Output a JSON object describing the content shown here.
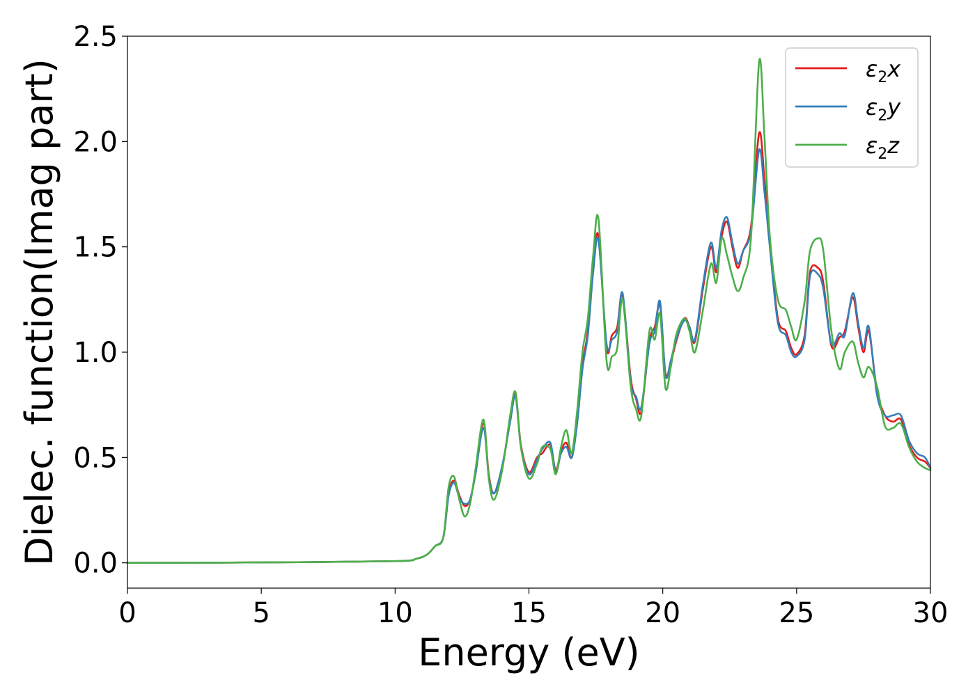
{
  "chart_data": {
    "type": "line",
    "xlabel": "Energy (eV)",
    "ylabel": "Dielec. function(Imag part)",
    "xlim": [
      0,
      30
    ],
    "ylim": [
      -0.12,
      2.5
    ],
    "xticks": [
      "0",
      "5",
      "10",
      "15",
      "20",
      "25",
      "30"
    ],
    "yticks": [
      "0.0",
      "0.5",
      "1.0",
      "1.5",
      "2.0",
      "2.5"
    ],
    "grid": false,
    "legend_position": "top-right",
    "series": [
      {
        "name": "ε₂x",
        "legend_base": "ε",
        "legend_sub": "2",
        "legend_tail": "x",
        "color": "#e41a1c",
        "x": [
          0,
          5,
          10,
          10.8,
          11.2,
          11.5,
          11.8,
          12.0,
          12.2,
          12.4,
          12.6,
          12.8,
          13.0,
          13.3,
          13.5,
          13.7,
          14.0,
          14.3,
          14.5,
          14.7,
          15.0,
          15.3,
          15.5,
          15.8,
          16.0,
          16.2,
          16.4,
          16.6,
          16.8,
          17.0,
          17.2,
          17.4,
          17.6,
          17.9,
          18.1,
          18.3,
          18.5,
          18.8,
          19.0,
          19.2,
          19.5,
          19.7,
          19.9,
          20.1,
          20.3,
          20.5,
          20.8,
          21.0,
          21.2,
          21.5,
          21.8,
          22.0,
          22.2,
          22.4,
          22.6,
          22.8,
          23.0,
          23.3,
          23.6,
          23.8,
          24.0,
          24.3,
          24.6,
          24.8,
          25.0,
          25.3,
          25.5,
          25.8,
          26.0,
          26.3,
          26.6,
          26.8,
          27.1,
          27.3,
          27.5,
          27.7,
          28.0,
          28.3,
          28.6,
          28.9,
          29.2,
          29.5,
          29.8,
          30.0
        ],
        "y": [
          0.0,
          0.002,
          0.008,
          0.02,
          0.04,
          0.08,
          0.12,
          0.33,
          0.39,
          0.32,
          0.27,
          0.3,
          0.42,
          0.66,
          0.42,
          0.33,
          0.45,
          0.68,
          0.8,
          0.56,
          0.43,
          0.5,
          0.52,
          0.56,
          0.44,
          0.53,
          0.57,
          0.5,
          0.68,
          0.94,
          1.1,
          1.4,
          1.55,
          1.02,
          1.08,
          1.12,
          1.27,
          0.88,
          0.78,
          0.72,
          1.05,
          1.12,
          1.22,
          0.9,
          0.95,
          1.05,
          1.16,
          1.12,
          1.05,
          1.3,
          1.5,
          1.38,
          1.55,
          1.62,
          1.5,
          1.4,
          1.48,
          1.6,
          2.04,
          1.82,
          1.52,
          1.16,
          1.1,
          1.02,
          0.99,
          1.08,
          1.38,
          1.4,
          1.33,
          1.03,
          1.07,
          1.1,
          1.26,
          1.12,
          1.0,
          1.1,
          0.82,
          0.7,
          0.67,
          0.68,
          0.56,
          0.5,
          0.48,
          0.45
        ]
      },
      {
        "name": "ε₂y",
        "legend_base": "ε",
        "legend_sub": "2",
        "legend_tail": "y",
        "color": "#377eb8",
        "x": [
          0,
          5,
          10,
          10.8,
          11.2,
          11.5,
          11.8,
          12.0,
          12.2,
          12.4,
          12.6,
          12.8,
          13.0,
          13.3,
          13.5,
          13.7,
          14.0,
          14.3,
          14.5,
          14.7,
          15.0,
          15.3,
          15.5,
          15.8,
          16.0,
          16.2,
          16.4,
          16.6,
          16.8,
          17.0,
          17.2,
          17.4,
          17.6,
          17.9,
          18.1,
          18.3,
          18.5,
          18.8,
          19.0,
          19.2,
          19.5,
          19.7,
          19.9,
          20.1,
          20.3,
          20.5,
          20.8,
          21.0,
          21.2,
          21.5,
          21.8,
          22.0,
          22.2,
          22.4,
          22.6,
          22.8,
          23.0,
          23.3,
          23.6,
          23.8,
          24.0,
          24.3,
          24.6,
          24.8,
          25.0,
          25.3,
          25.5,
          25.8,
          26.0,
          26.3,
          26.6,
          26.8,
          27.1,
          27.3,
          27.5,
          27.7,
          28.0,
          28.3,
          28.6,
          28.9,
          29.2,
          29.5,
          29.8,
          30.0
        ],
        "y": [
          0.0,
          0.002,
          0.008,
          0.02,
          0.04,
          0.08,
          0.12,
          0.32,
          0.38,
          0.31,
          0.28,
          0.3,
          0.42,
          0.64,
          0.41,
          0.33,
          0.46,
          0.67,
          0.79,
          0.55,
          0.42,
          0.49,
          0.54,
          0.57,
          0.43,
          0.52,
          0.55,
          0.5,
          0.66,
          0.92,
          1.08,
          1.38,
          1.53,
          1.04,
          1.06,
          1.1,
          1.28,
          0.86,
          0.79,
          0.74,
          1.04,
          1.1,
          1.24,
          0.89,
          0.96,
          1.06,
          1.15,
          1.12,
          1.06,
          1.32,
          1.52,
          1.4,
          1.58,
          1.64,
          1.52,
          1.42,
          1.48,
          1.58,
          1.96,
          1.76,
          1.5,
          1.14,
          1.08,
          1.0,
          0.98,
          1.06,
          1.36,
          1.37,
          1.3,
          1.04,
          1.09,
          1.08,
          1.28,
          1.14,
          1.02,
          1.12,
          0.8,
          0.7,
          0.7,
          0.7,
          0.58,
          0.52,
          0.5,
          0.45
        ]
      },
      {
        "name": "ε₂z",
        "legend_base": "ε",
        "legend_sub": "2",
        "legend_tail": "z",
        "color": "#4daf4a",
        "x": [
          0,
          5,
          10,
          10.8,
          11.2,
          11.5,
          11.8,
          12.0,
          12.2,
          12.4,
          12.6,
          12.8,
          13.0,
          13.3,
          13.5,
          13.7,
          14.0,
          14.3,
          14.5,
          14.7,
          15.0,
          15.3,
          15.5,
          15.8,
          16.0,
          16.2,
          16.4,
          16.6,
          16.8,
          17.0,
          17.2,
          17.4,
          17.6,
          17.9,
          18.1,
          18.3,
          18.5,
          18.8,
          19.0,
          19.2,
          19.5,
          19.7,
          19.9,
          20.1,
          20.3,
          20.5,
          20.8,
          21.0,
          21.2,
          21.5,
          21.8,
          22.0,
          22.2,
          22.4,
          22.6,
          22.8,
          23.0,
          23.3,
          23.6,
          23.8,
          24.0,
          24.3,
          24.6,
          24.8,
          25.0,
          25.3,
          25.5,
          25.8,
          26.0,
          26.3,
          26.6,
          26.8,
          27.1,
          27.3,
          27.5,
          27.7,
          28.0,
          28.3,
          28.6,
          28.9,
          29.2,
          29.5,
          29.8,
          30.0
        ],
        "y": [
          0.0,
          0.002,
          0.008,
          0.02,
          0.04,
          0.08,
          0.12,
          0.36,
          0.41,
          0.3,
          0.22,
          0.28,
          0.44,
          0.68,
          0.4,
          0.3,
          0.44,
          0.7,
          0.81,
          0.55,
          0.4,
          0.47,
          0.55,
          0.54,
          0.42,
          0.55,
          0.63,
          0.52,
          0.72,
          1.0,
          1.16,
          1.46,
          1.63,
          0.96,
          0.98,
          1.02,
          1.25,
          0.84,
          0.73,
          0.7,
          1.1,
          1.06,
          1.18,
          0.83,
          0.93,
          1.08,
          1.16,
          1.1,
          1.0,
          1.2,
          1.42,
          1.33,
          1.54,
          1.46,
          1.36,
          1.29,
          1.35,
          1.55,
          2.38,
          2.02,
          1.55,
          1.25,
          1.2,
          1.12,
          1.06,
          1.24,
          1.48,
          1.54,
          1.48,
          1.1,
          0.92,
          1.0,
          1.05,
          0.95,
          0.88,
          0.93,
          0.84,
          0.65,
          0.64,
          0.66,
          0.55,
          0.48,
          0.45,
          0.44
        ]
      }
    ]
  }
}
